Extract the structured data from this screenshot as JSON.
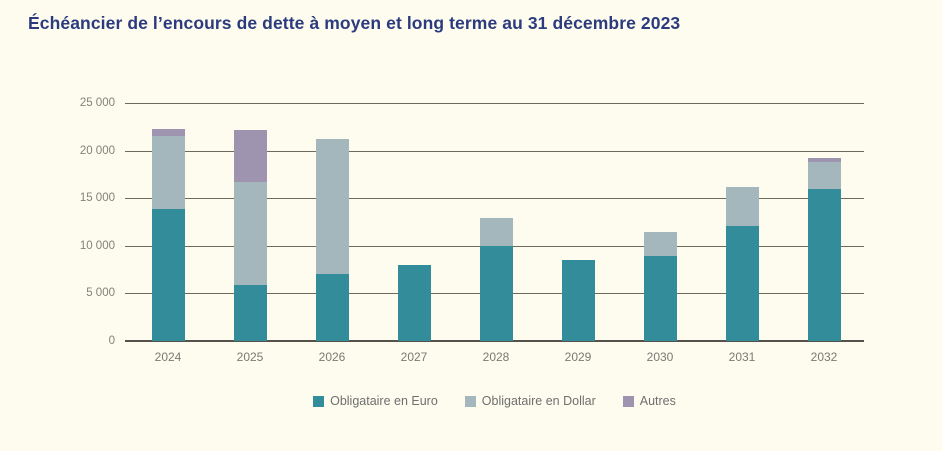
{
  "title": "Échéancier de l’encours de dette à moyen et long terme au 31 décembre 2023",
  "colors": {
    "background": "#FDFCEF",
    "title": "#2B3B7D",
    "grid": "#6D6A5C",
    "baseline": "#54524A",
    "axis_text": "#83817A",
    "legend_text": "#6F6F6F"
  },
  "chart_data": {
    "type": "bar",
    "stacked": true,
    "title": "Échéancier de l’encours de dette à moyen et long terme au 31 décembre 2023",
    "xlabel": "",
    "ylabel": "",
    "categories": [
      "2024",
      "2025",
      "2026",
      "2027",
      "2028",
      "2029",
      "2030",
      "2031",
      "2032"
    ],
    "series": [
      {
        "name": "Obligataire en Euro",
        "color": "#338C9A",
        "values": [
          13900,
          5900,
          7000,
          8000,
          10000,
          8500,
          8900,
          12100,
          16000
        ]
      },
      {
        "name": "Obligataire en Dollar",
        "color": "#A3B7BC",
        "values": [
          7600,
          10800,
          14200,
          0,
          2900,
          0,
          2600,
          4100,
          2800
        ]
      },
      {
        "name": "Autres",
        "color": "#9F94AF",
        "values": [
          800,
          5500,
          0,
          0,
          0,
          0,
          0,
          0,
          400
        ]
      }
    ],
    "ylim": [
      0,
      25000
    ],
    "ytick_step": 5000,
    "ytick_labels": [
      "0",
      "5 000",
      "10 000",
      "15 000",
      "20 000",
      "25 000"
    ],
    "grid": true,
    "legend_position": "bottom"
  }
}
